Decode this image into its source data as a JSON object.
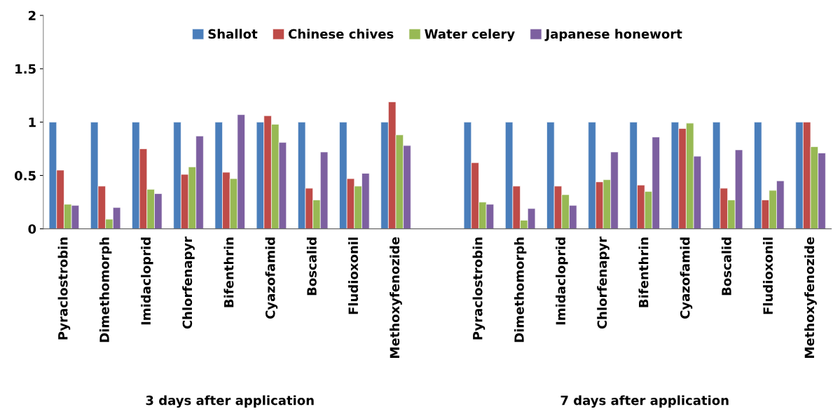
{
  "chart_data": {
    "type": "bar",
    "categories": [
      "Pyraclostrobin",
      "Dimethomorph",
      "Imidacloprid",
      "Chlorfenapyr",
      "Bifenthrin",
      "Cyazofamid",
      "Boscalid",
      "Fludioxonil",
      "Methoxyfenozide",
      null,
      "Pyraclostrobin",
      "Dimethomorph",
      "Imidacloprid",
      "Chlorfenapyr",
      "Bifenthrin",
      "Cyazofamid",
      "Boscalid",
      "Fludioxonil",
      "Methoxyfenozide"
    ],
    "series": [
      {
        "name": "Shallot",
        "color": "#4a7ebb",
        "values": [
          1,
          1,
          1,
          1,
          1,
          1,
          1,
          1,
          1,
          null,
          1,
          1,
          1,
          1,
          1,
          1,
          1,
          1,
          1
        ]
      },
      {
        "name": "Chinese chives",
        "color": "#be4b48",
        "values": [
          0.55,
          0.4,
          0.75,
          0.51,
          0.53,
          1.06,
          0.38,
          0.47,
          1.19,
          null,
          0.62,
          0.4,
          0.4,
          0.44,
          0.41,
          0.94,
          0.38,
          0.27,
          1.0
        ]
      },
      {
        "name": "Water celery",
        "color": "#98b954",
        "values": [
          0.23,
          0.09,
          0.37,
          0.58,
          0.47,
          0.98,
          0.27,
          0.4,
          0.88,
          null,
          0.25,
          0.08,
          0.32,
          0.46,
          0.35,
          0.99,
          0.27,
          0.36,
          0.77
        ]
      },
      {
        "name": "Japanese honewort",
        "color": "#7d60a0",
        "values": [
          0.22,
          0.2,
          0.33,
          0.87,
          1.07,
          0.81,
          0.72,
          0.52,
          0.78,
          null,
          0.23,
          0.19,
          0.22,
          0.72,
          0.86,
          0.68,
          0.74,
          0.45,
          0.71
        ]
      }
    ],
    "ylim": [
      0,
      2
    ],
    "yticks": [
      0,
      0.5,
      1,
      1.5,
      2
    ],
    "annotations": [
      "3 days after application",
      "7 days after application"
    ],
    "legend": "top",
    "grid": false
  }
}
